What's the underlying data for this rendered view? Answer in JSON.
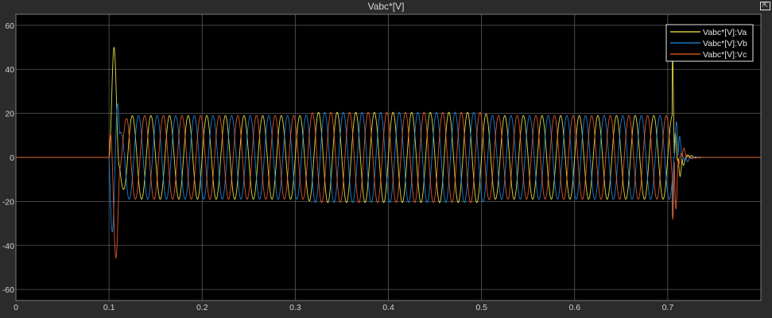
{
  "window": {
    "title": "Vabc*[V]",
    "restore_icon": "restore-axes-icon",
    "restore_glyph": "⇱"
  },
  "colors": {
    "background": "#2b2b2b",
    "axes_background": "#000000",
    "grid": "#5a5a5a",
    "axis_text": "#cfcfcf"
  },
  "chart_data": {
    "type": "line",
    "title": "Vabc*[V]",
    "xlabel": "",
    "ylabel": "",
    "xlim": [
      0,
      0.8
    ],
    "ylim": [
      -65,
      65
    ],
    "xticks": [
      0,
      0.1,
      0.2,
      0.3,
      0.4,
      0.5,
      0.6,
      0.7
    ],
    "xtick_labels": [
      "0",
      "0.1",
      "0.2",
      "0.3",
      "0.4",
      "0.5",
      "0.6",
      "0.7"
    ],
    "yticks": [
      -60,
      -40,
      -20,
      0,
      20,
      40,
      60
    ],
    "ytick_labels": [
      "-60",
      "-40",
      "-20",
      "0",
      "20",
      "40",
      "60"
    ],
    "grid": true,
    "legend_position": "top-right",
    "signal": {
      "frequency_hz": 50,
      "on_time": 0.1,
      "off_time": 0.705,
      "startup_peak": 51,
      "shutdown_peak": 53,
      "envelope": [
        {
          "x": 0.13,
          "amplitude": 19
        },
        {
          "x": 0.31,
          "amplitude": 19
        },
        {
          "x": 0.32,
          "amplitude": 20.5
        },
        {
          "x": 0.5,
          "amplitude": 20.5
        },
        {
          "x": 0.51,
          "amplitude": 19
        },
        {
          "x": 0.7,
          "amplitude": 19
        }
      ]
    },
    "series": [
      {
        "name": "Vabc*[V]:Va",
        "color": "#f5f04a",
        "phase_deg": 0
      },
      {
        "name": "Vabc*[V]:Vb",
        "color": "#1e8ce6",
        "phase_deg": -120
      },
      {
        "name": "Vabc*[V]:Vc",
        "color": "#f0602a",
        "phase_deg": 120
      }
    ]
  }
}
